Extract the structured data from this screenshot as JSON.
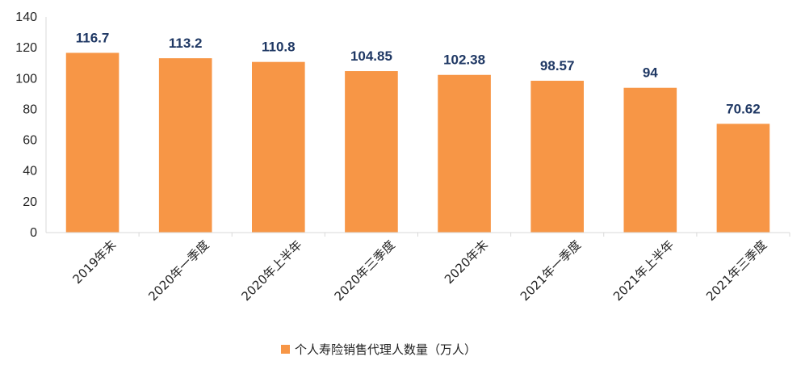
{
  "chart_data": {
    "type": "bar",
    "categories": [
      "2019年末",
      "2020年一季度",
      "2020年上半年",
      "2020年三季度",
      "2020年末",
      "2021年一季度",
      "2021年上半年",
      "2021年三季度"
    ],
    "series": [
      {
        "name": "个人寿险销售代理人数量（万人）",
        "values": [
          116.7,
          113.2,
          110.8,
          104.85,
          102.38,
          98.57,
          94,
          70.62
        ],
        "labels": [
          "116.7",
          "113.2",
          "110.8",
          "104.85",
          "102.38",
          "98.57",
          "94",
          "70.62"
        ],
        "color": "#f79646"
      }
    ],
    "ylim": [
      0,
      140
    ],
    "yticks": [
      0,
      20,
      40,
      60,
      80,
      100,
      120,
      140
    ],
    "grid": false,
    "legend_position": "bottom",
    "label_color": "#1f3864",
    "axis_color": "#d9d9d9"
  }
}
